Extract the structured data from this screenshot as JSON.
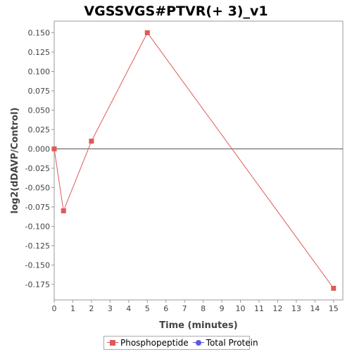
{
  "chart_data": {
    "type": "line",
    "title": "VGSSVGS#PTVR(+ 3)_v1",
    "xlabel": "Time (minutes)",
    "ylabel": "log2(dDAVP/Control)",
    "xlim": [
      0,
      15.5
    ],
    "ylim": [
      -0.195,
      0.165
    ],
    "xticks": [
      0,
      1,
      2,
      3,
      4,
      5,
      6,
      7,
      8,
      9,
      10,
      11,
      12,
      13,
      14,
      15
    ],
    "yticks": [
      0.15,
      0.125,
      0.1,
      0.075,
      0.05,
      0.025,
      0.0,
      -0.025,
      -0.05,
      -0.075,
      -0.1,
      -0.125,
      -0.15,
      -0.175
    ],
    "ytick_labels": [
      "0.150",
      "0.125",
      "0.100",
      "0.075",
      "0.050",
      "0.025",
      "0.000",
      "-0.025",
      "-0.050",
      "-0.075",
      "-0.100",
      "-0.125",
      "-0.150",
      "-0.175"
    ],
    "zero_line": true,
    "grid": false,
    "legend_position": "bottom-center",
    "series": [
      {
        "name": "Phosphopeptide",
        "color": "#e05a5a",
        "marker": "square",
        "x": [
          0,
          0.5,
          2,
          5,
          15
        ],
        "y": [
          0.0,
          -0.08,
          0.01,
          0.15,
          -0.18
        ]
      },
      {
        "name": "Total Protein",
        "color": "#5a5ae0",
        "marker": "circle",
        "x": [],
        "y": []
      }
    ]
  }
}
